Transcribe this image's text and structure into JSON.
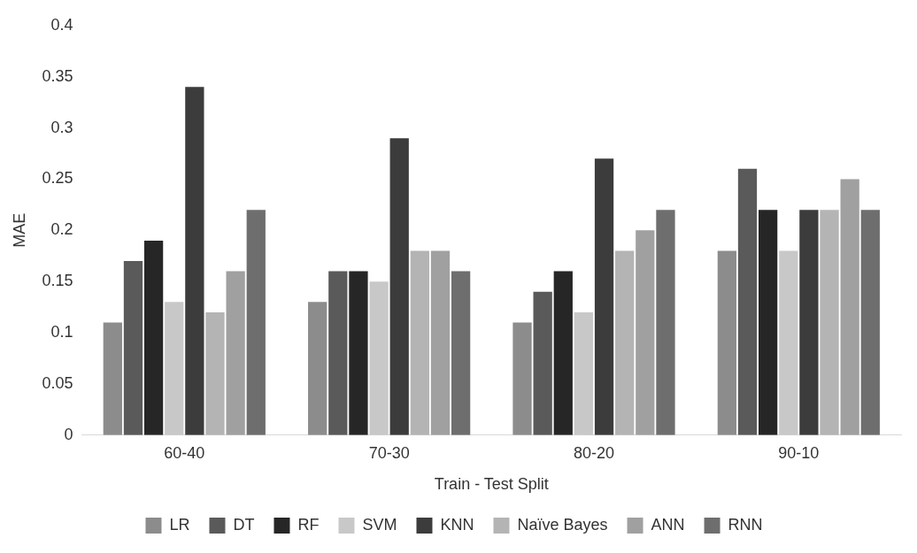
{
  "chart_data": {
    "type": "bar",
    "xlabel": "Train - Test Split",
    "ylabel": "MAE",
    "categories": [
      "60-40",
      "70-30",
      "80-20",
      "90-10"
    ],
    "series": [
      {
        "name": "LR",
        "color": "#8c8c8c",
        "values": [
          0.11,
          0.13,
          0.11,
          0.18
        ]
      },
      {
        "name": "DT",
        "color": "#5a5a5a",
        "values": [
          0.17,
          0.16,
          0.14,
          0.26
        ]
      },
      {
        "name": "RF",
        "color": "#262626",
        "values": [
          0.19,
          0.16,
          0.16,
          0.22
        ]
      },
      {
        "name": "SVM",
        "color": "#c8c8c8",
        "values": [
          0.13,
          0.15,
          0.12,
          0.18
        ]
      },
      {
        "name": "KNN",
        "color": "#3c3c3c",
        "values": [
          0.34,
          0.29,
          0.27,
          0.22
        ]
      },
      {
        "name": "Naïve Bayes",
        "color": "#b4b4b4",
        "values": [
          0.12,
          0.18,
          0.18,
          0.22
        ]
      },
      {
        "name": "ANN",
        "color": "#a0a0a0",
        "values": [
          0.16,
          0.18,
          0.2,
          0.25
        ]
      },
      {
        "name": "RNN",
        "color": "#6e6e6e",
        "values": [
          0.22,
          0.16,
          0.22,
          0.22
        ]
      }
    ],
    "ylim": [
      0,
      0.4
    ],
    "yticks": [
      0,
      0.05,
      0.1,
      0.15,
      0.2,
      0.25,
      0.3,
      0.35,
      0.4
    ],
    "grid": false,
    "legend": "bottom"
  }
}
